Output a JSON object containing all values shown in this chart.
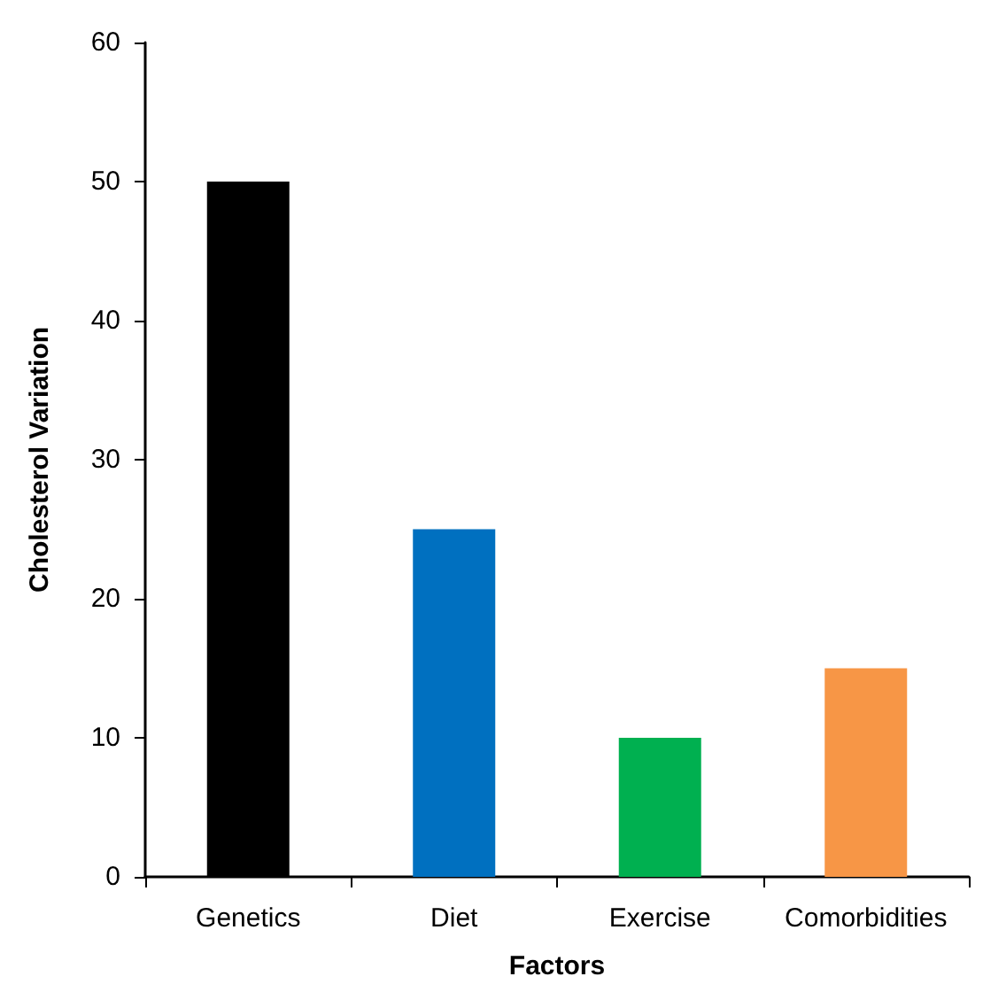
{
  "chart_data": {
    "type": "bar",
    "xlabel": "Factors",
    "ylabel": "Cholesterol Variation",
    "categories": [
      "Genetics",
      "Diet",
      "Exercise",
      "Comorbidities"
    ],
    "values": [
      50,
      25,
      10,
      15
    ],
    "colors": [
      "#000000",
      "#0070c0",
      "#00b050",
      "#f79646"
    ],
    "ylim": [
      0,
      60
    ],
    "yticks": [
      0,
      10,
      20,
      30,
      40,
      50,
      60
    ],
    "grid": false
  }
}
